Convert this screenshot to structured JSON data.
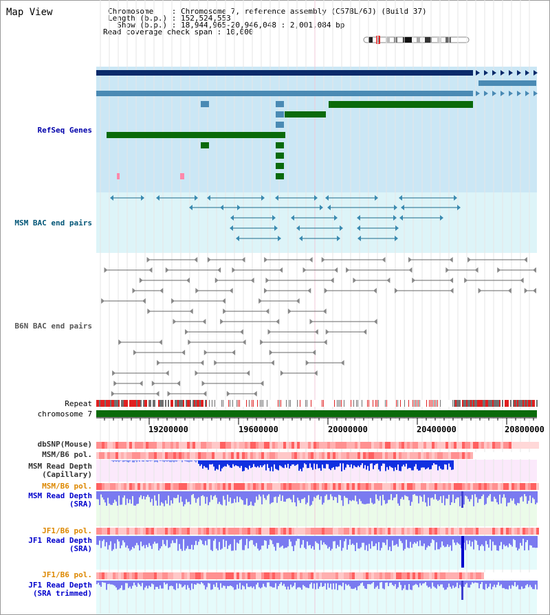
{
  "title": "Map View",
  "header": {
    "chromosome_label": "Chromosome    : Chromosome 7, reference assembly (C57BL/6J) (Build 37)",
    "length_label": "Length (b.p.) : 152,524,553",
    "show_label": "  Show (b.p.) : 18,944,965-20,946,048 : 2,001,084 bp",
    "coverage_label": "Read coverage check span : 10,000"
  },
  "tracks": {
    "refseq": "RefSeq Genes",
    "msm_bac": "MSM BAC end pairs",
    "b6n_bac": "B6N BAC end pairs",
    "repeat": "Repeat",
    "chromosome": "chromosome 7",
    "dbsnp": "dbSNP(Mouse)",
    "msm_b6_pol_1": "MSM/B6 pol.",
    "msm_read_depth_cap": "MSM Read Depth\n(Capillary)",
    "msm_b6_pol_2": "MSM/B6 pol.",
    "msm_read_depth_sra": "MSM Read Depth\n(SRA)",
    "jf1_b6_pol_1": "JF1/B6 pol.",
    "jf1_read_depth_sra": "JF1 Read Depth\n(SRA)",
    "jf1_b6_pol_2": "JF1/B6 pol.",
    "jf1_read_depth_trim": "JF1 Read Depth\n(SRA trimmed)"
  },
  "axis": {
    "ticks": [
      "19200000",
      "19600000",
      "20000000",
      "20400000",
      "20800000"
    ]
  },
  "colors": {
    "gene_dark": "#0a2a6a",
    "gene_mid": "#4a8ab4",
    "gene_green": "#0a6a0a",
    "msm_label": "#005577",
    "refseq_label": "#0000aa",
    "pol_orange": "#dd8800",
    "depth_blue": "#0000cc"
  }
}
